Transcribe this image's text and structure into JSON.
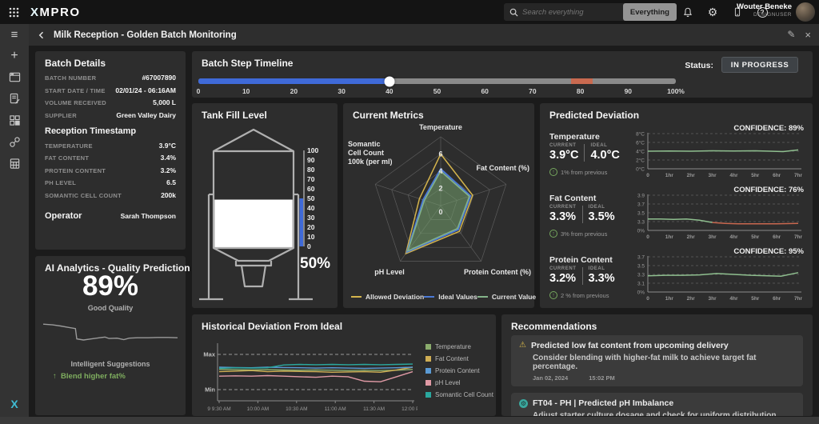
{
  "topbar": {
    "logo_x": "X",
    "logo_rest": "MPRO",
    "search": {
      "placeholder": "Search everything",
      "scope_button": "Everything"
    },
    "user": {
      "name": "Wouter Beneke",
      "role": "DESIGNUSER"
    }
  },
  "titlebar": {
    "title": "Milk Reception - Golden Batch Monitoring"
  },
  "sidebar": {
    "logo": "X"
  },
  "batch_details": {
    "title": "Batch Details",
    "fields": [
      {
        "label": "BATCH NUMBER",
        "value": "#67007890"
      },
      {
        "label": "START DATE / TIME",
        "value": "02/01/24 - 06:16AM"
      },
      {
        "label": "VOLUME RECEIVED",
        "value": "5,000 L"
      },
      {
        "label": "SUPPLIER",
        "value": "Green Valley Dairy"
      }
    ],
    "reception_title": "Reception Timestamp",
    "reception_fields": [
      {
        "label": "TEMPERATURE",
        "value": "3.9°C"
      },
      {
        "label": "FAT CONTENT",
        "value": "3.4%"
      },
      {
        "label": "PROTEIN CONTENT",
        "value": "3.2%"
      },
      {
        "label": "PH LEVEL",
        "value": "6.5"
      },
      {
        "label": "SOMANTIC CELL COUNT",
        "value": "200k"
      }
    ],
    "operator_label": "Operator",
    "operator_value": "Sarah Thompson"
  },
  "ai_analytics": {
    "title": "AI Analytics - Quality Prediction",
    "score": "89%",
    "quality_label": "Good Quality",
    "suggestions_title": "Intelligent Suggestions",
    "suggestion_arrow": "↑",
    "suggestion": "Blend higher fat%",
    "sparkline": [
      [
        0,
        0.8
      ],
      [
        0.07,
        0.78
      ],
      [
        0.13,
        0.75
      ],
      [
        0.19,
        0.71
      ],
      [
        0.24,
        0.68
      ],
      [
        0.25,
        0.4
      ],
      [
        0.3,
        0.37
      ],
      [
        0.36,
        0.4
      ],
      [
        0.42,
        0.43
      ],
      [
        0.46,
        0.45
      ],
      [
        0.49,
        0.41
      ],
      [
        0.55,
        0.42
      ],
      [
        0.6,
        0.38
      ],
      [
        0.64,
        0.42
      ],
      [
        0.7,
        0.43
      ],
      [
        0.78,
        0.43
      ],
      [
        0.85,
        0.44
      ],
      [
        0.93,
        0.44
      ],
      [
        1,
        0.43
      ]
    ]
  },
  "timeline": {
    "title": "Batch Step Timeline",
    "status_label": "Status:",
    "status_value": "IN PROGRESS",
    "ticks": [
      "0",
      "10",
      "20",
      "30",
      "40",
      "50",
      "60",
      "70",
      "80",
      "90",
      "100%"
    ],
    "progress_pct": 40,
    "alert_start_pct": 78,
    "alert_end_pct": 82.5
  },
  "tank": {
    "title": "Tank Fill Level",
    "fill_pct": 50,
    "fill_label": "50%",
    "scale": [
      "100",
      "90",
      "80",
      "70",
      "60",
      "50",
      "40",
      "30",
      "20",
      "10",
      "0"
    ]
  },
  "current_metrics": {
    "title": "Current Metrics",
    "chart_data": {
      "type": "radar",
      "axes": [
        "Temperature",
        "Fat Content (%)",
        "Protein Content (%)",
        "pH Level",
        "Somantic Cell Count 100k (per ml)"
      ],
      "rmax": 8,
      "rticks": [
        0,
        2,
        4,
        6
      ],
      "series": [
        {
          "name": "Allowed Deviation",
          "color": "#d4b44c",
          "values": [
            6.0,
            3.9,
            3.7,
            6.9,
            2.6
          ]
        },
        {
          "name": "Ideal Values",
          "color": "#4b79d6",
          "values": [
            4.25,
            3.65,
            3.45,
            6.65,
            2.15
          ]
        },
        {
          "name": "Current Value",
          "color": "#84b48a",
          "fill": "rgba(116,160,110,0.55)",
          "values": [
            4.0,
            3.5,
            3.3,
            6.5,
            2.0
          ]
        }
      ]
    },
    "scc_label_lines": [
      "Somantic",
      "Cell Count",
      "100k (per ml)"
    ]
  },
  "predicted_deviation": {
    "title": "Predicted Deviation",
    "current_label": "CURRENT",
    "ideal_label": "IDEAL",
    "metrics": [
      {
        "name": "Temperature",
        "confidence": "CONFIDENCE: 89%",
        "current": "3.9°C",
        "ideal": "4.0°C",
        "delta": "1% from previous",
        "chart": {
          "yticks": [
            "8°C",
            "6°C",
            "4°C",
            "2°C",
            "0°C"
          ],
          "xticks": [
            "0",
            "1hr",
            "2hr",
            "3hr",
            "4hr",
            "5hr",
            "6hr",
            "7hr"
          ],
          "vtop": 8,
          "vtick": 2,
          "series": [
            {
              "color": "#8fbf8f",
              "points": [
                [
                  0,
                  4.0
                ],
                [
                  1,
                  4.05
                ],
                [
                  2,
                  4.0
                ],
                [
                  3,
                  4.1
                ],
                [
                  4,
                  4.05
                ],
                [
                  5,
                  4.1
                ],
                [
                  5.7,
                  4.0
                ],
                [
                  6.3,
                  3.9
                ],
                [
                  7,
                  4.3
                ]
              ]
            }
          ]
        }
      },
      {
        "name": "Fat Content",
        "confidence": "CONFIDENCE: 76%",
        "current": "3.3%",
        "ideal": "3.5%",
        "delta": "3% from previous",
        "chart": {
          "yticks": [
            "3.9",
            "3.7",
            "3.5",
            "3.3",
            "0%"
          ],
          "xticks": [
            "0",
            "1hr",
            "2hr",
            "3hr",
            "4hr",
            "5hr",
            "6hr",
            "7hr"
          ],
          "vtop": 3.9,
          "vtick": 0.2,
          "series": [
            {
              "color": "#8fbf8f",
              "points": [
                [
                  0,
                  3.36
                ],
                [
                  0.6,
                  3.36
                ],
                [
                  1.2,
                  3.35
                ],
                [
                  1.8,
                  3.36
                ],
                [
                  2.4,
                  3.33
                ],
                [
                  3,
                  3.28
                ]
              ]
            },
            {
              "color": "#c9684f",
              "points": [
                [
                  3,
                  3.28
                ],
                [
                  3.6,
                  3.26
                ],
                [
                  4.2,
                  3.25
                ],
                [
                  5,
                  3.25
                ],
                [
                  6,
                  3.25
                ],
                [
                  7,
                  3.26
                ]
              ]
            }
          ]
        }
      },
      {
        "name": "Protein Content",
        "confidence": "CONFIDENCE: 95%",
        "current": "3.2%",
        "ideal": "3.3%",
        "delta": "2 % from previous",
        "chart": {
          "yticks": [
            "3.7",
            "3.5",
            "3.3",
            "3.1",
            "0%"
          ],
          "xticks": [
            "0",
            "1hr",
            "2hr",
            "3hr",
            "4hr",
            "5hr",
            "6hr",
            "7hr"
          ],
          "vtop": 3.7,
          "vtick": 0.2,
          "series": [
            {
              "color": "#8fbf8f",
              "points": [
                [
                  0,
                  3.27
                ],
                [
                  0.8,
                  3.28
                ],
                [
                  1.6,
                  3.28
                ],
                [
                  2.4,
                  3.29
                ],
                [
                  3.2,
                  3.32
                ],
                [
                  4,
                  3.3
                ],
                [
                  4.8,
                  3.28
                ],
                [
                  5.6,
                  3.27
                ],
                [
                  6.2,
                  3.26
                ],
                [
                  7,
                  3.34
                ]
              ]
            }
          ]
        }
      }
    ]
  },
  "historical": {
    "title": "Historical Deviation From Ideal",
    "ymax_label": "Max",
    "ymin_label": "Min",
    "xticks": [
      "9 9:30 AM",
      "10:00 AM",
      "10:30 AM",
      "11:00 AM",
      "11:30 AM",
      "12:00 PM"
    ],
    "chart_data": {
      "type": "line",
      "y_axis": "normalized deviation between Min and Max bands",
      "series": [
        {
          "name": "Temperature",
          "color": "#8aac6c",
          "values": [
            0.56,
            0.555,
            0.55,
            0.555,
            0.55,
            0.545,
            0.55,
            0.545,
            0.54,
            0.545,
            0.54,
            0.545,
            0.56
          ]
        },
        {
          "name": "Fat Content",
          "color": "#cfae54",
          "values": [
            0.52,
            0.53,
            0.54,
            0.52,
            0.53,
            0.525,
            0.52,
            0.51,
            0.515,
            0.52,
            0.51,
            0.55,
            0.6
          ]
        },
        {
          "name": "Protein Content",
          "color": "#5b9bd5",
          "values": [
            0.6,
            0.595,
            0.59,
            0.6,
            0.595,
            0.59,
            0.585,
            0.59,
            0.585,
            0.58,
            0.585,
            0.59,
            0.6
          ]
        },
        {
          "name": "pH Level",
          "color": "#e09aa5",
          "values": [
            0.44,
            0.445,
            0.44,
            0.45,
            0.44,
            0.43,
            0.42,
            0.44,
            0.43,
            0.35,
            0.34,
            0.43,
            0.52
          ]
        },
        {
          "name": "Somantic Cell Count",
          "color": "#2aa89e",
          "values": [
            0.58,
            0.59,
            0.585,
            0.59,
            0.64,
            0.65,
            0.645,
            0.65,
            0.645,
            0.65,
            0.645,
            0.65,
            0.655
          ]
        }
      ]
    }
  },
  "recommendations": {
    "title": "Recommendations",
    "items": [
      {
        "icon": "warning",
        "title": "Predicted low fat content from upcoming delivery",
        "body": "Consider blending with higher-fat milk to achieve target fat percentage.",
        "date": "Jan 02, 2024",
        "time": "15:02 PM"
      },
      {
        "icon": "teal-gear",
        "title": "FT04 - PH | Predicted pH Imbalance",
        "body": "Adjust starter culture dosage and check for uniform distribution.",
        "date": "",
        "time": ""
      }
    ]
  }
}
